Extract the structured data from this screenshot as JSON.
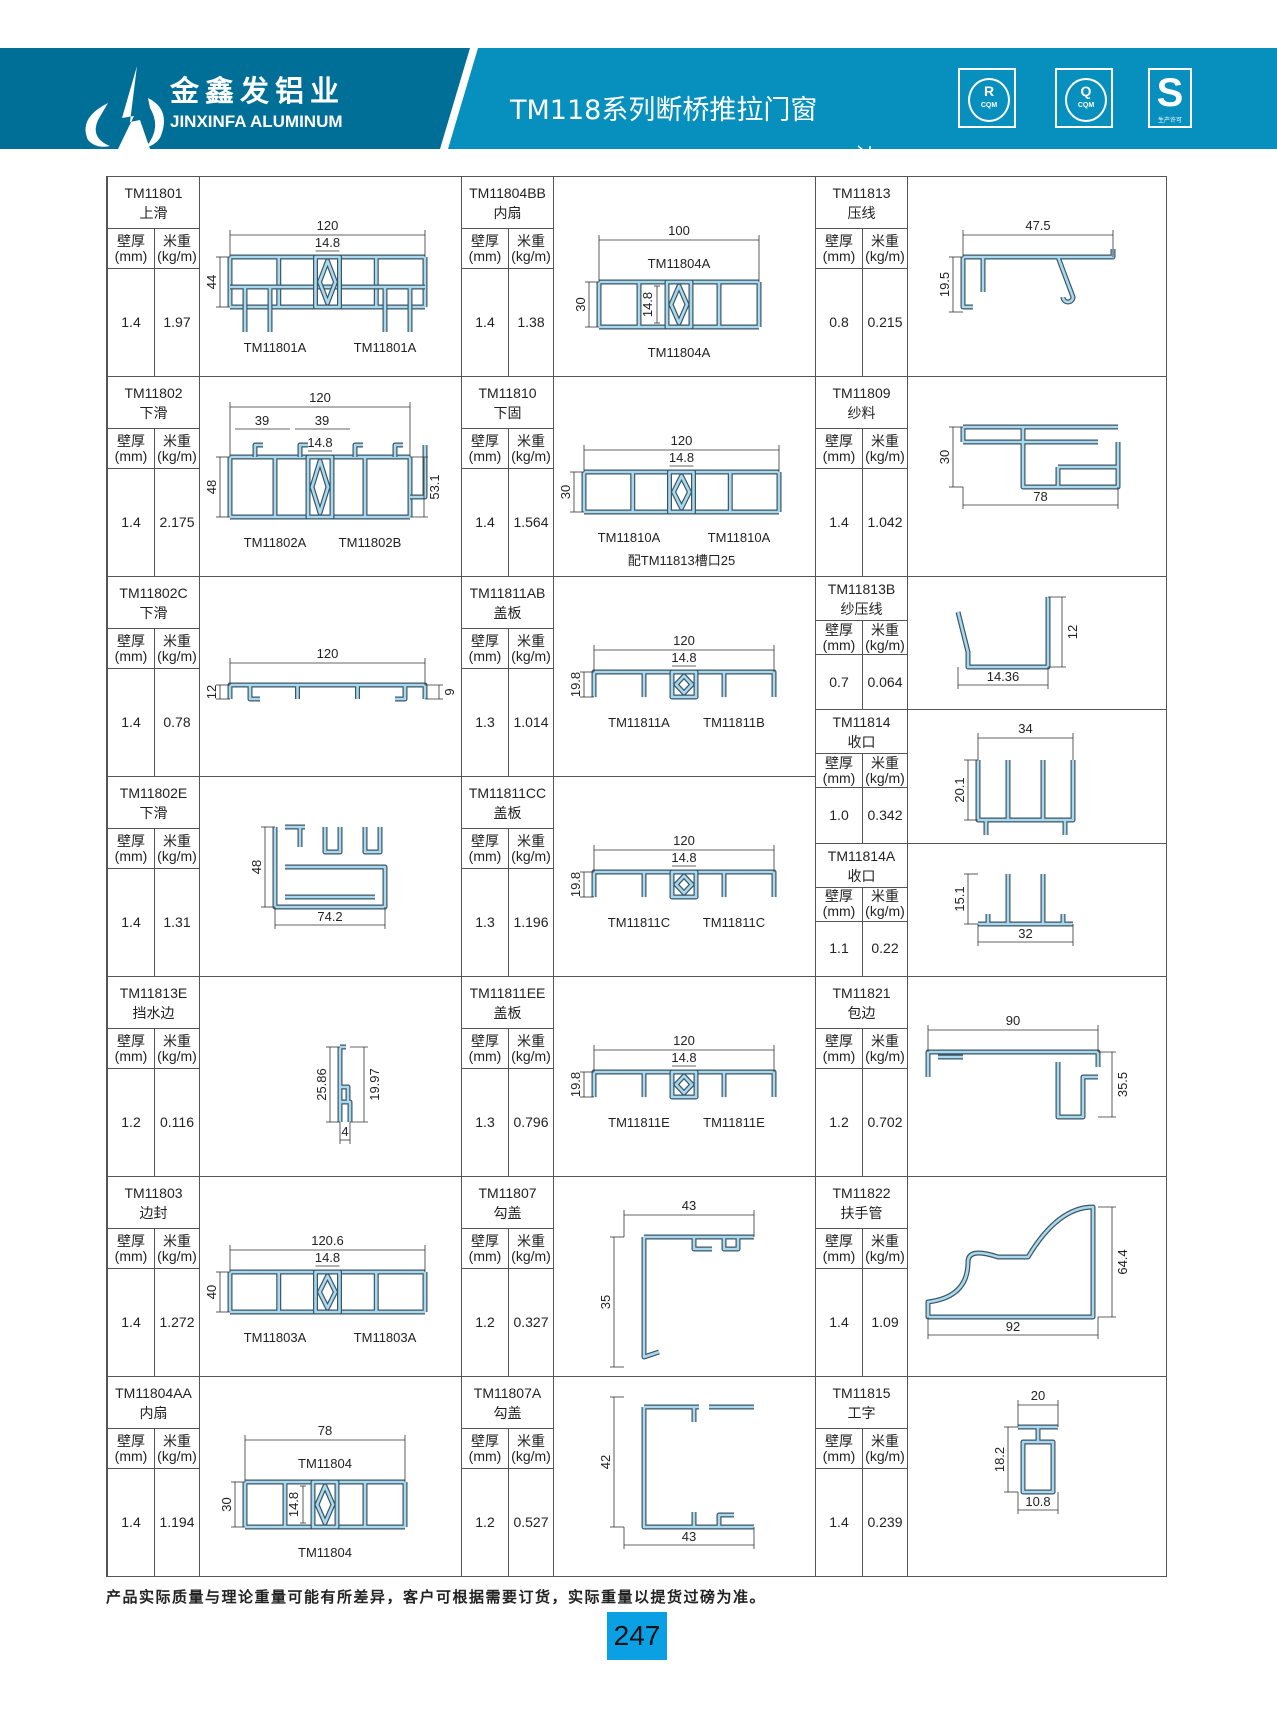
{
  "header": {
    "brand_cn": "金鑫发铝业",
    "brand_en": "JINXINFA ALUMINUM",
    "title": "TM118系列断桥推拉门窗",
    "certs": [
      {
        "top": "R",
        "bottom": "CQM"
      },
      {
        "top": "Q",
        "bottom": "CQM"
      },
      {
        "top": "S",
        "bottom": "生产许可"
      }
    ],
    "colors": {
      "dark": "#006f97",
      "light": "#078fbe"
    }
  },
  "labels": {
    "thickness": "壁厚",
    "thickness_unit": "(mm)",
    "weight": "米重",
    "weight_unit": "(kg/m)"
  },
  "profile_color": "#a9d9ee",
  "columns": [
    [
      {
        "code": "TM11801",
        "name": "上滑",
        "thickness": "1.4",
        "weight": "1.97",
        "dims": {
          "top": "120",
          "center": "14.8",
          "left": "44"
        },
        "parts": [
          "TM11801A",
          "TM11801A"
        ]
      },
      {
        "code": "TM11802",
        "name": "下滑",
        "thickness": "1.4",
        "weight": "2.175",
        "dims": {
          "top": "120",
          "center": "14.8",
          "left": "48",
          "right": "53.1"
        },
        "extra": [
          "39",
          "39"
        ],
        "parts": [
          "TM11802A",
          "TM11802B"
        ]
      },
      {
        "code": "TM11802C",
        "name": "下滑",
        "thickness": "1.4",
        "weight": "0.78",
        "dims": {
          "top": "120",
          "left": "12",
          "right": "9"
        }
      },
      {
        "code": "TM11802E",
        "name": "下滑",
        "thickness": "1.4",
        "weight": "1.31",
        "dims": {
          "left": "48",
          "bottom": "74.2"
        }
      },
      {
        "code": "TM11813E",
        "name": "挡水边",
        "thickness": "1.2",
        "weight": "0.116",
        "dims": {
          "left": "25.86",
          "right": "19.97",
          "bottom": "4"
        }
      },
      {
        "code": "TM11803",
        "name": "边封",
        "thickness": "1.4",
        "weight": "1.272",
        "dims": {
          "top": "120.6",
          "center": "14.8",
          "left": "40"
        },
        "parts": [
          "TM11803A",
          "TM11803A"
        ]
      },
      {
        "code": "TM11804AA",
        "name": "内扇",
        "thickness": "1.4",
        "weight": "1.194",
        "dims": {
          "top": "78",
          "center": "14.8",
          "left": "30"
        },
        "top_part": "TM11804",
        "parts": [
          "TM11804"
        ]
      }
    ],
    [
      {
        "code": "TM11804BB",
        "name": "内扇",
        "thickness": "1.4",
        "weight": "1.38",
        "dims": {
          "top": "100",
          "center": "14.8",
          "left": "30"
        },
        "top_part": "TM11804A",
        "parts": [
          "TM11804A"
        ]
      },
      {
        "code": "TM11810",
        "name": "下固",
        "thickness": "1.4",
        "weight": "1.564",
        "dims": {
          "top": "120",
          "center": "14.8",
          "left": "30"
        },
        "parts": [
          "TM11810A",
          "TM11810A"
        ],
        "note": "配TM11813槽口25"
      },
      {
        "code": "TM11811AB",
        "name": "盖板",
        "thickness": "1.3",
        "weight": "1.014",
        "dims": {
          "top": "120",
          "center": "14.8",
          "left": "19.8"
        },
        "parts": [
          "TM11811A",
          "TM11811B"
        ]
      },
      {
        "code": "TM11811CC",
        "name": "盖板",
        "thickness": "1.3",
        "weight": "1.196",
        "dims": {
          "top": "120",
          "center": "14.8",
          "left": "19.8"
        },
        "parts": [
          "TM11811C",
          "TM11811C"
        ]
      },
      {
        "code": "TM11811EE",
        "name": "盖板",
        "thickness": "1.3",
        "weight": "0.796",
        "dims": {
          "top": "120",
          "center": "14.8",
          "left": "19.8"
        },
        "parts": [
          "TM11811E",
          "TM11811E"
        ]
      },
      {
        "code": "TM11807",
        "name": "勾盖",
        "thickness": "1.2",
        "weight": "0.327",
        "dims": {
          "top": "43",
          "left": "35"
        }
      },
      {
        "code": "TM11807A",
        "name": "勾盖",
        "thickness": "1.2",
        "weight": "0.527",
        "dims": {
          "left": "42",
          "bottom": "43"
        }
      }
    ],
    [
      {
        "code": "TM11813",
        "name": "压线",
        "thickness": "0.8",
        "weight": "0.215",
        "dims": {
          "top": "47.5",
          "left": "19.5"
        }
      },
      {
        "code": "TM11809",
        "name": "纱料",
        "thickness": "1.4",
        "weight": "1.042",
        "dims": {
          "left": "30",
          "bottom": "78"
        }
      },
      {
        "code": "TM11813B",
        "name": "纱压线",
        "thickness": "0.7",
        "weight": "0.064",
        "dims": {
          "right": "12",
          "bottom": "14.36"
        }
      },
      {
        "code": "TM11814",
        "name": "收口",
        "thickness": "1.0",
        "weight": "0.342",
        "dims": {
          "top": "34",
          "left": "20.1"
        }
      },
      {
        "code": "TM11814A",
        "name": "收口",
        "thickness": "1.1",
        "weight": "0.22",
        "dims": {
          "left": "15.1",
          "bottom": "32"
        }
      },
      {
        "code": "TM11821",
        "name": "包边",
        "thickness": "1.2",
        "weight": "0.702",
        "dims": {
          "top": "90",
          "right": "35.5"
        }
      },
      {
        "code": "TM11822",
        "name": "扶手管",
        "thickness": "1.4",
        "weight": "1.09",
        "dims": {
          "right": "64.4",
          "bottom": "92"
        }
      },
      {
        "code": "TM11815",
        "name": "工字",
        "thickness": "1.4",
        "weight": "0.239",
        "dims": {
          "top": "20",
          "left": "18.2",
          "bottom": "10.8"
        }
      }
    ]
  ],
  "footer": {
    "note": "产品实际质量与理论重量可能有所差异，客户可根据需要订货，实际重量以提货过磅为准。",
    "page": "247"
  }
}
